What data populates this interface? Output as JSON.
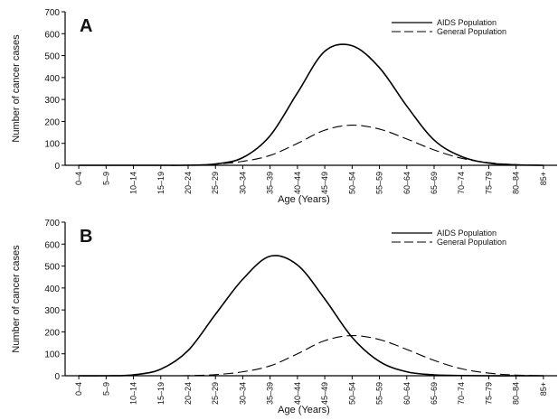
{
  "chart_data": [
    {
      "type": "line",
      "panel_label": "A",
      "title": "",
      "xlabel": "Age  (Years)",
      "ylabel": "Number of cancer cases",
      "ylim": [
        0,
        700
      ],
      "yticks": [
        0,
        100,
        200,
        300,
        400,
        500,
        600,
        700
      ],
      "categories": [
        "0–4",
        "5–9",
        "10–14",
        "15–19",
        "20–24",
        "25–29",
        "30–34",
        "35–39",
        "40–44",
        "45–49",
        "50–54",
        "55–59",
        "60–64",
        "65–69",
        "70–74",
        "75–79",
        "80–84",
        "85+"
      ],
      "legend_position": "top-right",
      "grid": false,
      "series": [
        {
          "name": "AIDS Population",
          "style": "solid",
          "color": "#000000",
          "values": [
            0,
            0,
            0,
            0,
            0.5,
            6,
            35,
            135,
            330,
            520,
            545,
            445,
            270,
            115,
            40,
            10,
            2,
            0
          ]
        },
        {
          "name": "General Population",
          "style": "dashed",
          "color": "#000000",
          "values": [
            0,
            0,
            0,
            0,
            0.5,
            5,
            18,
            45,
            100,
            160,
            183,
            165,
            120,
            70,
            32,
            12,
            3,
            0
          ]
        }
      ]
    },
    {
      "type": "line",
      "panel_label": "B",
      "title": "",
      "xlabel": "Age  (Years)",
      "ylabel": "Number of cancer cases",
      "ylim": [
        0,
        700
      ],
      "yticks": [
        0,
        100,
        200,
        300,
        400,
        500,
        600,
        700
      ],
      "categories": [
        "0–4",
        "5–9",
        "10–14",
        "15–19",
        "20–24",
        "25–29",
        "30–34",
        "35–39",
        "40–44",
        "45–49",
        "50–54",
        "55–59",
        "60–64",
        "65–69",
        "70–74",
        "75–79",
        "80–84",
        "85+"
      ],
      "legend_position": "top-right",
      "grid": false,
      "series": [
        {
          "name": "AIDS Population",
          "style": "solid",
          "color": "#000000",
          "values": [
            0,
            0,
            4,
            30,
            115,
            280,
            440,
            545,
            505,
            350,
            175,
            65,
            18,
            4,
            1,
            0,
            0,
            0
          ]
        },
        {
          "name": "General Population",
          "style": "dashed",
          "color": "#000000",
          "values": [
            0,
            0,
            0,
            0,
            0.5,
            5,
            18,
            45,
            100,
            160,
            183,
            165,
            120,
            70,
            32,
            12,
            3,
            0
          ]
        }
      ]
    }
  ]
}
